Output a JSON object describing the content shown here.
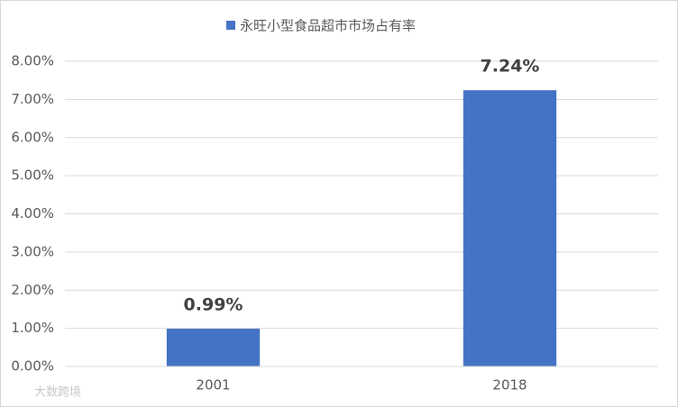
{
  "chart_data": {
    "type": "bar",
    "legend_position": "top",
    "categories": [
      "2001",
      "2018"
    ],
    "series": [
      {
        "name": "永旺小型食品超市市场占有率",
        "color": "#4472c4",
        "values": [
          0.99,
          7.24
        ],
        "value_labels": [
          "0.99%",
          "7.24%"
        ]
      }
    ],
    "ylim": [
      0,
      8
    ],
    "yticks": [
      {
        "value": 0,
        "label": "0.00%"
      },
      {
        "value": 1,
        "label": "1.00%"
      },
      {
        "value": 2,
        "label": "2.00%"
      },
      {
        "value": 3,
        "label": "3.00%"
      },
      {
        "value": 4,
        "label": "4.00%"
      },
      {
        "value": 5,
        "label": "5.00%"
      },
      {
        "value": 6,
        "label": "6.00%"
      },
      {
        "value": 7,
        "label": "7.00%"
      },
      {
        "value": 8,
        "label": "8.00%"
      }
    ],
    "grid": true,
    "watermark": "大数跨境"
  }
}
